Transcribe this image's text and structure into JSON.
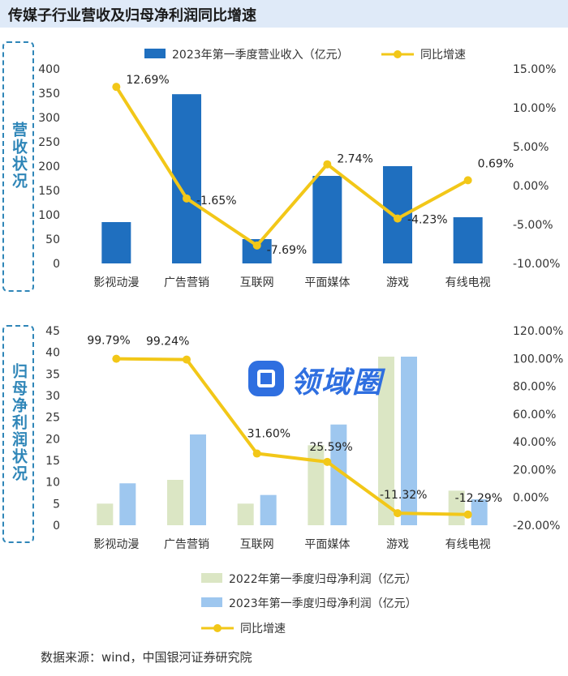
{
  "title": "传媒子行业营收及归母净利润同比增速",
  "source": "数据来源：wind，中国银河证券研究院",
  "watermark": "领域圈",
  "colors": {
    "accent": "#2f86b8",
    "bar_2023_rev": "#1f6fbf",
    "bar_2022_np": "#dbe6c4",
    "bar_2023_np": "#9ec7ef",
    "line": "#f2c718"
  },
  "chart_data": [
    {
      "type": "bar",
      "section_label": "营收状况",
      "categories": [
        "影视动漫",
        "广告营销",
        "互联网",
        "平面媒体",
        "游戏",
        "有线电视"
      ],
      "series": [
        {
          "name": "2023年第一季度营业收入（亿元）",
          "kind": "bar",
          "axis": "left",
          "values": [
            85,
            348,
            50,
            180,
            200,
            95
          ]
        },
        {
          "name": "同比增速",
          "kind": "line",
          "axis": "right",
          "values": [
            12.69,
            -1.65,
            -7.69,
            2.74,
            -4.23,
            0.69
          ],
          "labels": [
            "12.69%",
            "-1.65%",
            "-7.69%",
            "2.74%",
            "-4.23%",
            "0.69%"
          ]
        }
      ],
      "left_axis": {
        "min": 0,
        "max": 400,
        "ticks": [
          "0",
          "50",
          "100",
          "150",
          "200",
          "250",
          "300",
          "350",
          "400"
        ]
      },
      "right_axis": {
        "min": -10,
        "max": 15,
        "ticks": [
          "-10.00%",
          "-5.00%",
          "0.00%",
          "5.00%",
          "10.00%",
          "15.00%"
        ]
      },
      "legend_position": "top"
    },
    {
      "type": "bar",
      "section_label": "归母净利润状况",
      "categories": [
        "影视动漫",
        "广告营销",
        "互联网",
        "平面媒体",
        "游戏",
        "有线电视"
      ],
      "series": [
        {
          "name": "2022年第一季度归母净利润（亿元）",
          "kind": "bar",
          "axis": "left",
          "values": [
            5,
            10.5,
            5,
            18.5,
            39,
            8
          ]
        },
        {
          "name": "2023年第一季度归母净利润（亿元）",
          "kind": "bar",
          "axis": "left",
          "values": [
            9.7,
            21,
            7,
            23.3,
            39,
            6
          ]
        },
        {
          "name": "同比增速",
          "kind": "line",
          "axis": "right",
          "values": [
            99.79,
            99.24,
            31.6,
            25.59,
            -11.32,
            -12.29
          ],
          "labels": [
            "99.79%",
            "99.24%",
            "31.60%",
            "25.59%",
            "-11.32%",
            "-12.29%"
          ]
        }
      ],
      "left_axis": {
        "min": 0,
        "max": 45,
        "ticks": [
          "0",
          "5",
          "10",
          "15",
          "20",
          "25",
          "30",
          "35",
          "40",
          "45"
        ]
      },
      "right_axis": {
        "min": -20,
        "max": 120,
        "ticks": [
          "-20.00%",
          "0.00%",
          "20.00%",
          "40.00%",
          "60.00%",
          "80.00%",
          "100.00%",
          "120.00%"
        ]
      },
      "legend_position": "bottom"
    }
  ]
}
